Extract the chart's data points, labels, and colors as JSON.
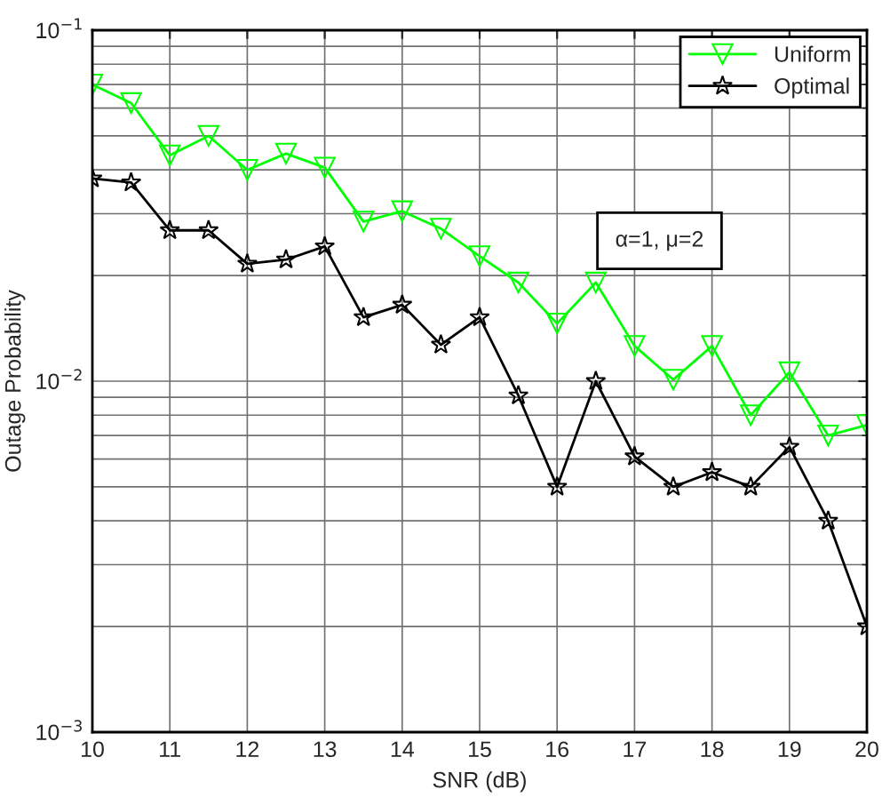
{
  "chart_data": {
    "type": "line",
    "xlabel": "SNR (dB)",
    "ylabel": "Outage Probability",
    "x": [
      10,
      10.5,
      11,
      11.5,
      12,
      12.5,
      13,
      13.5,
      14,
      14.5,
      15,
      15.5,
      16,
      16.5,
      17,
      17.5,
      18,
      18.5,
      19,
      19.5,
      20
    ],
    "series": [
      {
        "name": "Uniform",
        "color": "#00ff00",
        "marker": "triangle",
        "values": [
          0.07,
          0.062,
          0.044,
          0.05,
          0.04,
          0.0445,
          0.0406,
          0.0285,
          0.0305,
          0.0272,
          0.0227,
          0.0191,
          0.0146,
          0.0191,
          0.0126,
          0.0101,
          0.0126,
          0.008,
          0.0106,
          0.007,
          0.0075
        ]
      },
      {
        "name": "Optimal",
        "color": "#000000",
        "marker": "star",
        "values": [
          0.0378,
          0.0368,
          0.0269,
          0.0269,
          0.0216,
          0.0222,
          0.0242,
          0.0152,
          0.0165,
          0.0127,
          0.0152,
          0.0091,
          0.005,
          0.01,
          0.0061,
          0.005,
          0.0055,
          0.005,
          0.0065,
          0.004,
          0.002
        ]
      }
    ],
    "log": "y",
    "xlim": [
      10,
      20
    ],
    "ylim": [
      0.001,
      0.1
    ],
    "xticks": [
      10,
      11,
      12,
      13,
      14,
      15,
      16,
      17,
      18,
      19,
      20
    ],
    "yticks": [
      {
        "value": 0.001,
        "label": "10$^{−3}$"
      },
      {
        "value": 0.01,
        "label": "10$^{−2}$"
      },
      {
        "value": 0.1,
        "label": "10$^{−1}$"
      }
    ],
    "grid": true,
    "legend": "top right",
    "line_style": "solid",
    "annotations": [
      "α=1, μ=2"
    ]
  }
}
